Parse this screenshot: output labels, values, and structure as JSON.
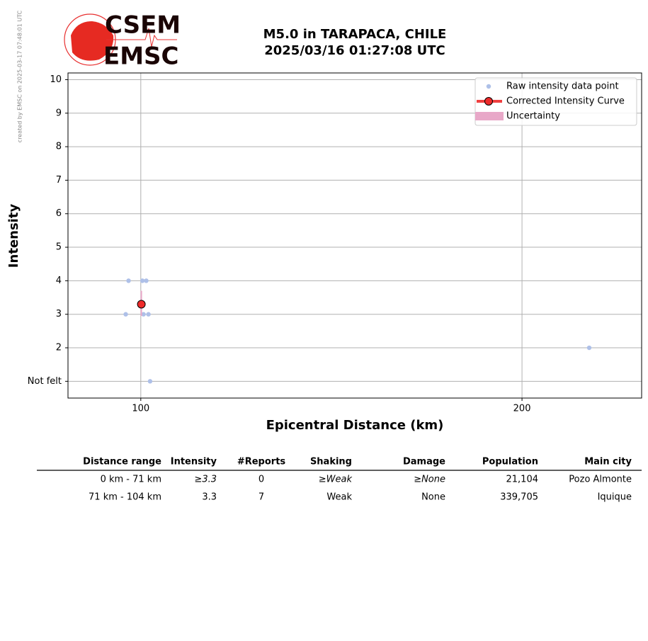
{
  "credit": "created by EMSC on 2025-03-17 07:48:01 UTC",
  "logo": {
    "top": "CSEM",
    "bottom": "EMSC"
  },
  "chart_data": {
    "type": "scatter",
    "title": "M5.0 in TARAPACA, CHILE",
    "subtitle": "2025/03/16 01:27:08 UTC",
    "x_label": "Epicentral Distance (km)",
    "y_label": "Intensity",
    "xscale": "log",
    "xlim": [
      87.6,
      248.6
    ],
    "xticks": [
      100,
      200
    ],
    "ylim": [
      0.5,
      10.2
    ],
    "yticks": [
      {
        "value": 1,
        "label": "Not felt"
      },
      2,
      3,
      4,
      5,
      6,
      7,
      8,
      9,
      10
    ],
    "grid": true,
    "legend": "upper right",
    "series": [
      {
        "name": "Raw intensity data point",
        "color": "#aec0e8",
        "x": [
          97.8,
          100.3,
          101.0,
          97.3,
          100.5,
          101.4,
          226,
          101.7
        ],
        "values": [
          4,
          4,
          4,
          3,
          3,
          3,
          2,
          1
        ]
      },
      {
        "name": "Corrected Intensity Curve",
        "color": "#ee2a2a",
        "x": [
          100.1
        ],
        "values": [
          3.3
        ]
      },
      {
        "name": "Uncertainty",
        "color": "#e8a8c8",
        "x": [
          100.1
        ],
        "low": [
          2.95
        ],
        "high": [
          3.7
        ]
      }
    ]
  },
  "table": {
    "columns": [
      "Distance range",
      "Intensity",
      "#Reports",
      "Shaking",
      "Damage",
      "Population",
      "Main city"
    ],
    "rows": [
      [
        "0 km -   71 km",
        "≥3.3",
        "0",
        "≥Weak",
        "≥None",
        "21,104",
        "Pozo Almonte"
      ],
      [
        "71 km -  104 km",
        "3.3",
        "7",
        "Weak",
        "None",
        "339,705",
        "Iquique"
      ]
    ]
  }
}
